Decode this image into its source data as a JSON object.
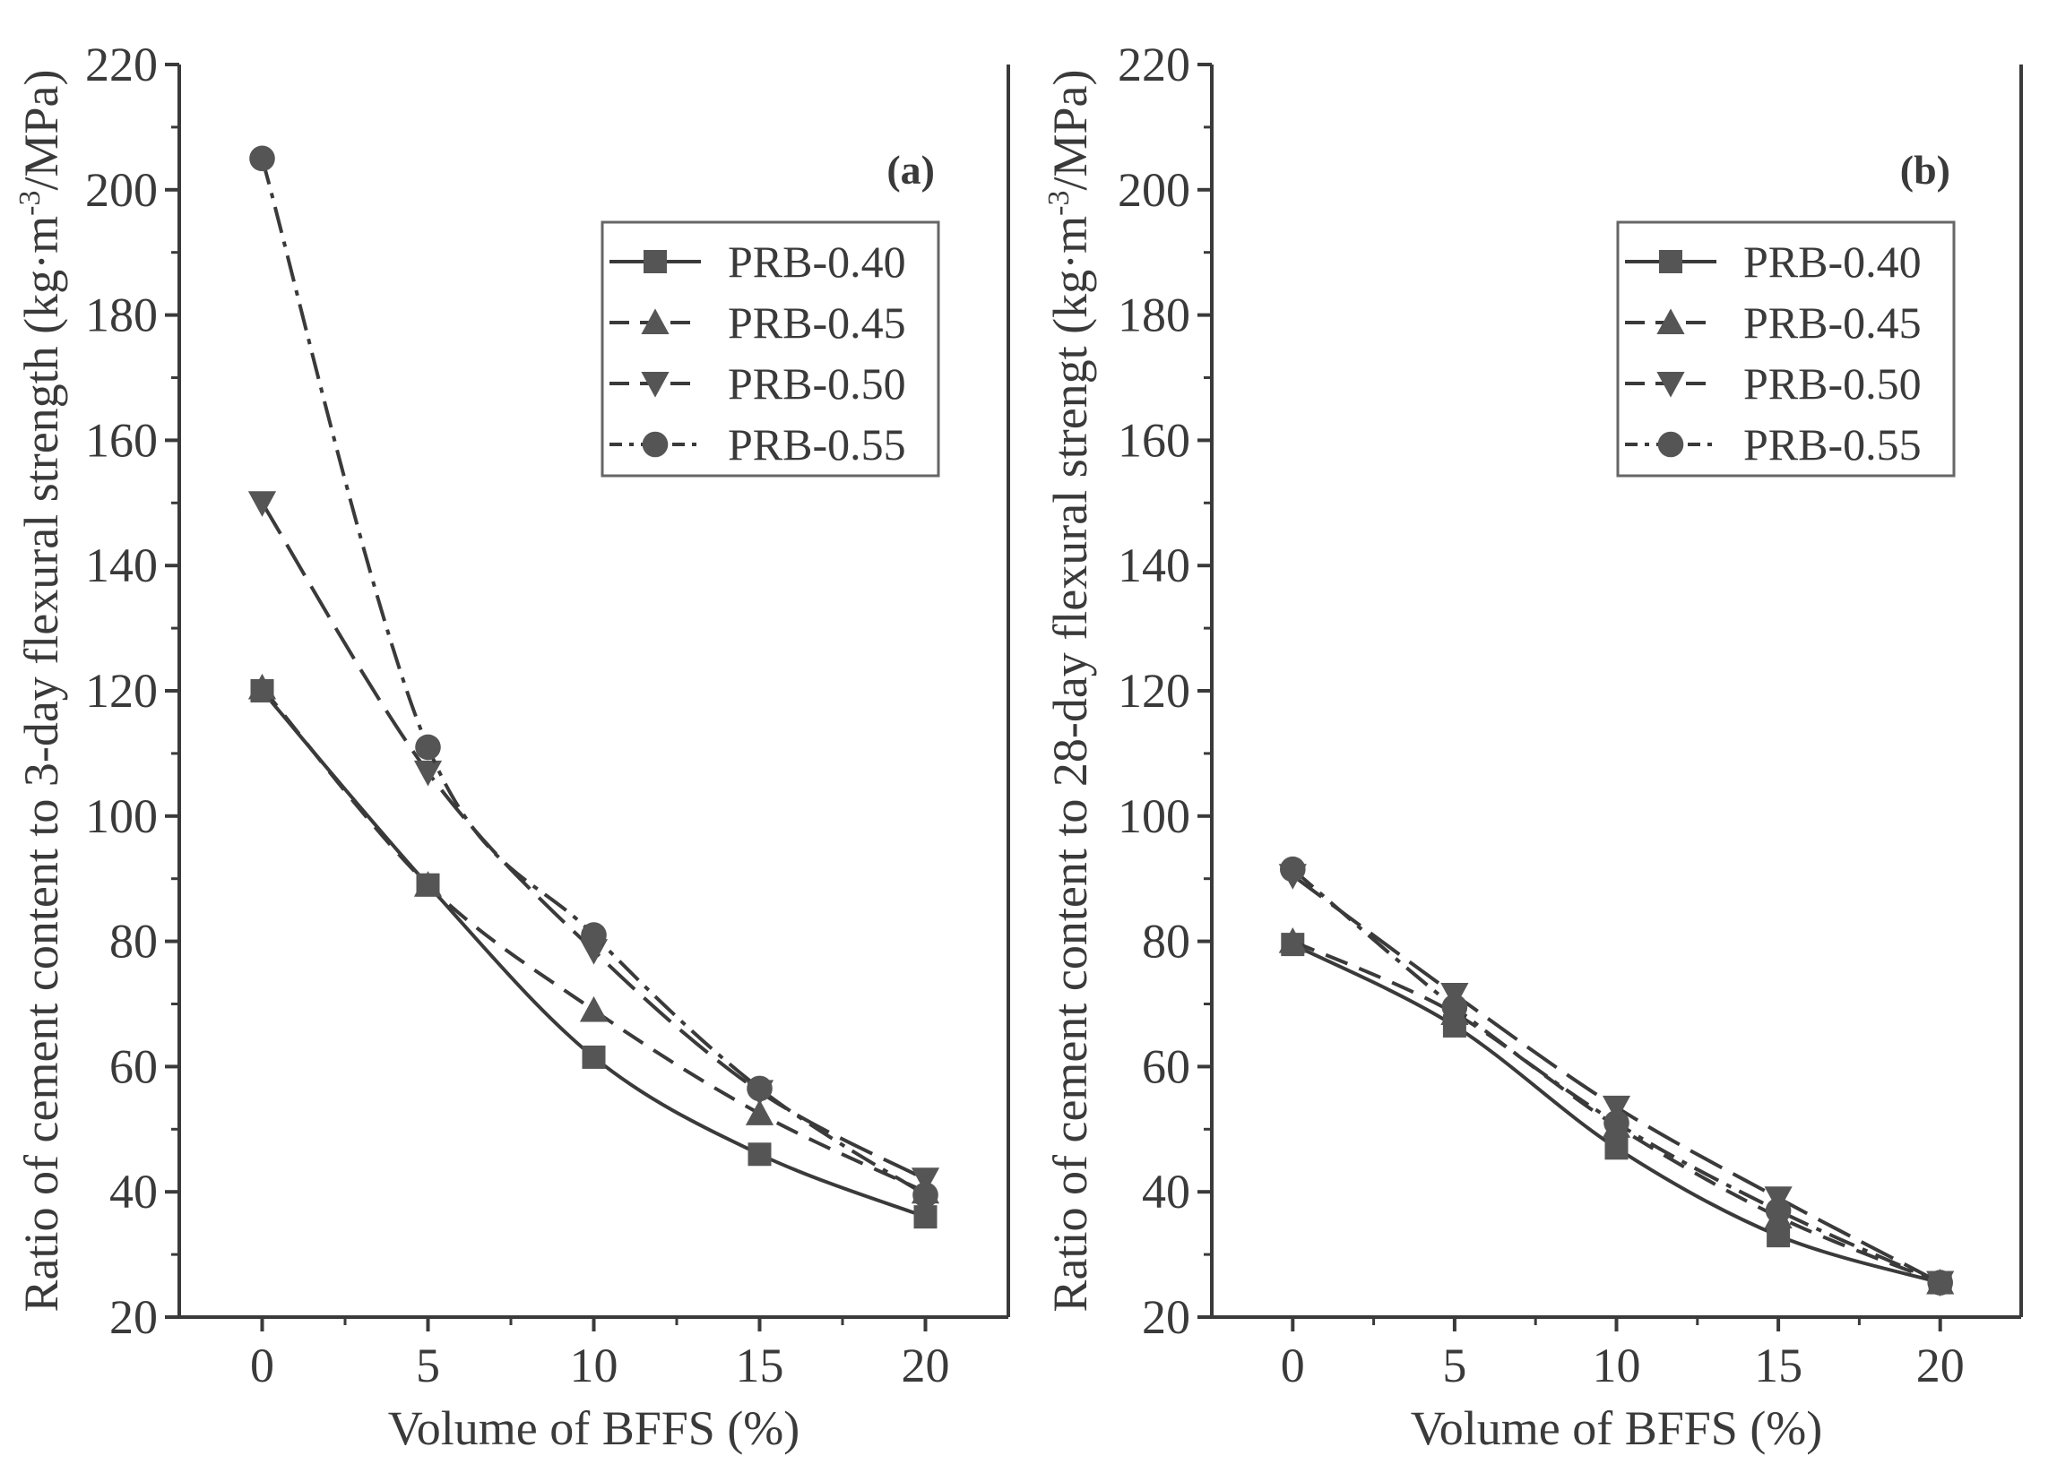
{
  "chart_data": [
    {
      "type": "line",
      "panel_label": "(a)",
      "xlabel": "Volume of BFFS (%)",
      "ylabel_parts": {
        "before": "Ratio of cement content to 3-day flexural strength  (kg·m",
        "sup": "-3",
        "after": "/MPa)"
      },
      "x": [
        0,
        5,
        10,
        15,
        20
      ],
      "xlim": [
        -2.5,
        22.5
      ],
      "ylim": [
        20,
        220
      ],
      "xticks": [
        0,
        5,
        10,
        15,
        20
      ],
      "yticks": [
        20,
        40,
        60,
        80,
        100,
        120,
        140,
        160,
        180,
        200,
        220
      ],
      "legend_position": "top-right",
      "series": [
        {
          "name": "PRB-0.40",
          "marker": "square",
          "dash": "solid",
          "values": [
            120,
            89,
            61.5,
            46,
            36
          ]
        },
        {
          "name": "PRB-0.45",
          "marker": "triangle-up",
          "dash": "dash",
          "values": [
            120.5,
            89,
            69,
            52.5,
            40
          ]
        },
        {
          "name": "PRB-0.50",
          "marker": "triangle-down",
          "dash": "longdash",
          "values": [
            150,
            107,
            78.5,
            56,
            42
          ]
        },
        {
          "name": "PRB-0.55",
          "marker": "circle",
          "dash": "dashdot",
          "values": [
            205,
            111,
            81,
            56.5,
            39.5
          ]
        }
      ]
    },
    {
      "type": "line",
      "panel_label": "(b)",
      "xlabel": "Volume of BFFS (%)",
      "ylabel_parts": {
        "before": "Ratio of cement content to 28-day flexural strengt  (kg·m",
        "sup": "-3",
        "after": "/MPa)"
      },
      "x": [
        0,
        5,
        10,
        15,
        20
      ],
      "xlim": [
        -2.5,
        22.5
      ],
      "ylim": [
        20,
        220
      ],
      "xticks": [
        0,
        5,
        10,
        15,
        20
      ],
      "yticks": [
        20,
        40,
        60,
        80,
        100,
        120,
        140,
        160,
        180,
        200,
        220
      ],
      "legend_position": "top-right",
      "series": [
        {
          "name": "PRB-0.40",
          "marker": "square",
          "dash": "solid",
          "values": [
            79.5,
            66.5,
            47,
            33,
            25.5
          ]
        },
        {
          "name": "PRB-0.45",
          "marker": "triangle-up",
          "dash": "dash",
          "values": [
            80,
            68.5,
            50.5,
            36,
            25.5
          ]
        },
        {
          "name": "PRB-0.50",
          "marker": "triangle-down",
          "dash": "longdash",
          "values": [
            90.5,
            71.5,
            53.5,
            39,
            25.5
          ]
        },
        {
          "name": "PRB-0.55",
          "marker": "circle",
          "dash": "dashdot",
          "values": [
            91.5,
            69.5,
            51,
            37,
            25.5
          ]
        }
      ]
    }
  ],
  "style": {
    "ink": "#3a3a3a",
    "marker_fill": "#555555",
    "background": "#ffffff"
  }
}
